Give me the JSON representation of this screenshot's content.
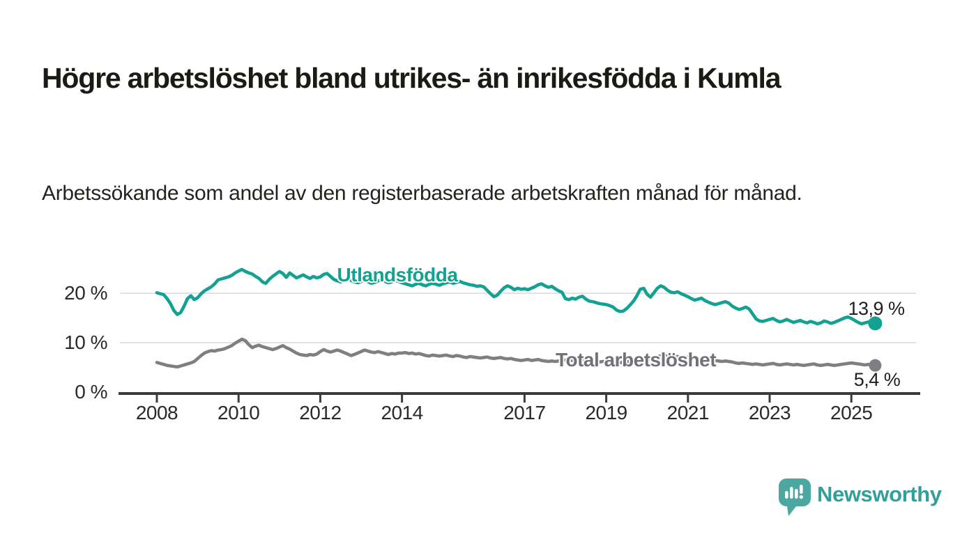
{
  "title": "Högre arbetslöshet bland utrikes- än inrikesfödda i Kumla",
  "subtitle": "Arbetssökande som andel av den registerbaserade arbetskraften månad för månad.",
  "brand": {
    "name": "Newsworthy",
    "logo_icon": "speech-bubble-bar-chart-icon"
  },
  "colors": {
    "series_foreign": "#12a192",
    "series_total": "#7e7e83",
    "gridline": "#e2e2e2",
    "axis": "#3b3b3b",
    "title_text": "#1b1b16",
    "brand_teal": "#4ca7a1"
  },
  "chart_data": {
    "type": "line",
    "title": "Högre arbetslöshet bland utrikes- än inrikesfödda i Kumla",
    "subtitle": "Arbetssökande som andel av den registerbaserade arbetskraften månad för månad.",
    "unit": "%",
    "frequency": "monthly",
    "x_start": "2008-01",
    "x_end": "2025-08",
    "xlim": [
      2007.1,
      2026.6
    ],
    "ylim": [
      0,
      28
    ],
    "grid": "horizontal",
    "y_ticks": [
      {
        "label": "0 %",
        "value": 0
      },
      {
        "label": "10 %",
        "value": 10
      },
      {
        "label": "20 %",
        "value": 20
      }
    ],
    "x_ticks": [
      {
        "label": "2008",
        "year": 2008
      },
      {
        "label": "2010",
        "year": 2010
      },
      {
        "label": "2012",
        "year": 2012
      },
      {
        "label": "2014",
        "year": 2014
      },
      {
        "label": "2017",
        "year": 2017
      },
      {
        "label": "2019",
        "year": 2019
      },
      {
        "label": "2021",
        "year": 2021
      },
      {
        "label": "2023",
        "year": 2023
      },
      {
        "label": "2025",
        "year": 2025
      }
    ],
    "series": [
      {
        "name": "Utlandsfödda",
        "color": "#12a192",
        "end_label": "13,9 %",
        "end_value": 13.9,
        "values": [
          20.1,
          19.9,
          19.7,
          18.9,
          17.9,
          16.5,
          15.7,
          16.1,
          17.4,
          18.9,
          19.5,
          18.7,
          19.1,
          19.9,
          20.5,
          20.9,
          21.3,
          21.9,
          22.7,
          22.9,
          23.1,
          23.3,
          23.6,
          24.1,
          24.5,
          24.8,
          24.4,
          24.1,
          23.9,
          23.4,
          23.0,
          22.3,
          22.0,
          22.8,
          23.4,
          23.9,
          24.4,
          24.0,
          23.2,
          24.1,
          23.6,
          23.1,
          23.4,
          23.7,
          23.3,
          23.0,
          23.4,
          23.1,
          23.3,
          23.8,
          24.0,
          23.4,
          22.8,
          22.5,
          22.3,
          22.7,
          22.9,
          22.6,
          22.3,
          22.1,
          22.4,
          22.6,
          22.3,
          22.0,
          22.2,
          22.5,
          22.7,
          22.4,
          22.1,
          22.3,
          22.6,
          22.4,
          22.1,
          21.9,
          21.7,
          21.5,
          21.8,
          22.0,
          21.7,
          21.5,
          21.8,
          22.0,
          21.8,
          21.6,
          21.9,
          22.1,
          22.3,
          22.0,
          22.2,
          22.4,
          22.1,
          21.9,
          21.7,
          21.6,
          21.4,
          21.5,
          21.3,
          20.6,
          19.9,
          19.3,
          19.6,
          20.4,
          21.1,
          21.5,
          21.2,
          20.7,
          21.0,
          20.8,
          20.9,
          20.7,
          21.0,
          21.3,
          21.7,
          21.9,
          21.5,
          21.2,
          21.4,
          20.9,
          20.5,
          20.2,
          18.9,
          18.7,
          19.0,
          18.8,
          19.2,
          19.4,
          18.8,
          18.4,
          18.3,
          18.1,
          17.9,
          17.8,
          17.7,
          17.5,
          17.2,
          16.6,
          16.3,
          16.4,
          16.9,
          17.6,
          18.4,
          19.5,
          20.8,
          21.0,
          19.8,
          19.2,
          20.1,
          21.0,
          21.5,
          21.2,
          20.6,
          20.2,
          20.1,
          20.3,
          19.9,
          19.6,
          19.3,
          18.9,
          18.6,
          18.8,
          19.0,
          18.5,
          18.2,
          17.9,
          17.7,
          17.9,
          18.1,
          18.3,
          18.0,
          17.4,
          17.0,
          16.7,
          16.9,
          17.2,
          16.8,
          15.8,
          14.8,
          14.4,
          14.3,
          14.5,
          14.7,
          14.9,
          14.5,
          14.2,
          14.4,
          14.7,
          14.4,
          14.1,
          14.3,
          14.5,
          14.2,
          14.0,
          14.3,
          14.1,
          13.8,
          14.0,
          14.4,
          14.2,
          13.9,
          14.1,
          14.4,
          14.7,
          15.0,
          15.2,
          14.9,
          14.5,
          14.1,
          13.8,
          14.0,
          14.2,
          14.0,
          13.9
        ]
      },
      {
        "name": "Total arbetslöshet",
        "color": "#7e7e83",
        "end_label": "5,4 %",
        "end_value": 5.4,
        "values": [
          6.0,
          5.8,
          5.6,
          5.4,
          5.3,
          5.2,
          5.1,
          5.3,
          5.5,
          5.7,
          5.9,
          6.2,
          6.8,
          7.4,
          7.9,
          8.2,
          8.4,
          8.3,
          8.5,
          8.6,
          8.8,
          9.1,
          9.4,
          9.9,
          10.3,
          10.7,
          10.4,
          9.6,
          9.0,
          9.3,
          9.5,
          9.2,
          9.0,
          8.8,
          8.6,
          8.8,
          9.1,
          9.4,
          9.0,
          8.7,
          8.3,
          7.9,
          7.6,
          7.5,
          7.4,
          7.6,
          7.5,
          7.7,
          8.2,
          8.6,
          8.3,
          8.1,
          8.3,
          8.5,
          8.3,
          8.0,
          7.7,
          7.4,
          7.6,
          7.9,
          8.2,
          8.5,
          8.3,
          8.1,
          8.0,
          8.2,
          8.0,
          7.8,
          7.6,
          7.8,
          7.7,
          7.9,
          7.9,
          8.0,
          7.8,
          7.9,
          7.7,
          7.8,
          7.6,
          7.4,
          7.3,
          7.5,
          7.4,
          7.3,
          7.4,
          7.5,
          7.3,
          7.2,
          7.4,
          7.3,
          7.1,
          7.0,
          7.2,
          7.1,
          7.0,
          6.9,
          7.0,
          7.1,
          6.9,
          6.8,
          6.9,
          7.0,
          6.8,
          6.7,
          6.8,
          6.6,
          6.5,
          6.4,
          6.5,
          6.6,
          6.4,
          6.5,
          6.6,
          6.4,
          6.3,
          6.2,
          6.3,
          6.2,
          6.3,
          6.4,
          6.5,
          6.6,
          6.4,
          6.3,
          6.4,
          6.5,
          6.3,
          6.2,
          6.1,
          6.2,
          6.1,
          6.2,
          6.1,
          6.0,
          5.8,
          5.7,
          5.9,
          6.1,
          6.2,
          6.1,
          6.2,
          6.3,
          6.4,
          6.5,
          6.6,
          6.7,
          6.9,
          7.2,
          7.3,
          7.4,
          7.3,
          7.2,
          7.1,
          7.2,
          7.1,
          7.0,
          7.1,
          7.0,
          6.8,
          6.7,
          6.6,
          6.5,
          6.4,
          6.3,
          6.4,
          6.3,
          6.2,
          6.3,
          6.2,
          6.1,
          5.9,
          5.8,
          5.9,
          5.8,
          5.7,
          5.6,
          5.7,
          5.6,
          5.5,
          5.6,
          5.7,
          5.8,
          5.6,
          5.5,
          5.6,
          5.7,
          5.6,
          5.5,
          5.6,
          5.5,
          5.4,
          5.5,
          5.6,
          5.7,
          5.5,
          5.4,
          5.5,
          5.6,
          5.5,
          5.4,
          5.5,
          5.6,
          5.7,
          5.8,
          5.9,
          5.8,
          5.7,
          5.6,
          5.5,
          5.6,
          5.5,
          5.4
        ]
      }
    ],
    "legend_position": "inline-labels"
  }
}
